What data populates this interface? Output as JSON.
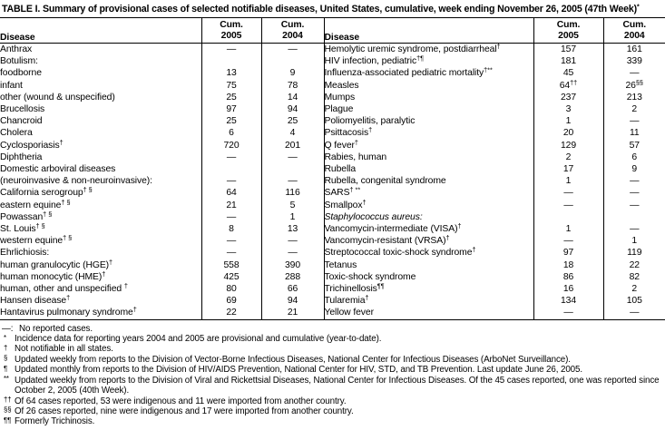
{
  "title": {
    "text": "TABLE I. Summary of provisional cases of selected notifiable diseases, United States, cumulative, week ending November 26, 2005 (47th Week)",
    "sup": "*"
  },
  "header": {
    "disease": "Disease",
    "cum2005": [
      "Cum.",
      "2005"
    ],
    "cum2004": [
      "Cum.",
      "2004"
    ]
  },
  "colors": {
    "text": "#000000",
    "border": "#000000",
    "background": "#ffffff"
  },
  "rows": {
    "left": [
      {
        "label": "Anthrax",
        "v05": "—",
        "v04": "—"
      },
      {
        "label": "Botulism:",
        "v05": "",
        "v04": ""
      },
      {
        "label": "foodborne",
        "indent": 2,
        "v05": "13",
        "v04": "9"
      },
      {
        "label": "infant",
        "indent": 2,
        "v05": "75",
        "v04": "78"
      },
      {
        "label": "other (wound & unspecified)",
        "indent": 2,
        "v05": "25",
        "v04": "14"
      },
      {
        "label": "Brucellosis",
        "v05": "97",
        "v04": "94"
      },
      {
        "label": "Chancroid",
        "v05": "25",
        "v04": "25"
      },
      {
        "label": "Cholera",
        "v05": "6",
        "v04": "4"
      },
      {
        "label": "Cyclosporiasis",
        "sup": "†",
        "v05": "720",
        "v04": "201"
      },
      {
        "label": "Diphtheria",
        "v05": "—",
        "v04": "—"
      },
      {
        "label": "Domestic arboviral diseases",
        "v05": "",
        "v04": ""
      },
      {
        "label": "(neuroinvasive & non-neuroinvasive):",
        "indent": 1,
        "v05": "—",
        "v04": "—"
      },
      {
        "label": "California serogroup",
        "sup": "† §",
        "indent": 2,
        "v05": "64",
        "v04": "116"
      },
      {
        "label": "eastern equine",
        "sup": "† §",
        "indent": 2,
        "v05": "21",
        "v04": "5"
      },
      {
        "label": "Powassan",
        "sup": "† §",
        "indent": 2,
        "v05": "—",
        "v04": "1"
      },
      {
        "label": "St. Louis",
        "sup": "† §",
        "indent": 2,
        "v05": "8",
        "v04": "13"
      },
      {
        "label": "western equine",
        "sup": "† §",
        "indent": 2,
        "v05": "—",
        "v04": "—"
      },
      {
        "label": "Ehrlichiosis:",
        "v05": "—",
        "v04": "—"
      },
      {
        "label": "human granulocytic (HGE)",
        "sup": "†",
        "indent": 2,
        "v05": "558",
        "v04": "390"
      },
      {
        "label": "human monocytic (HME)",
        "sup": "†",
        "indent": 2,
        "v05": "425",
        "v04": "288"
      },
      {
        "label": "human, other and unspecified ",
        "sup": "†",
        "indent": 2,
        "v05": "80",
        "v04": "66"
      },
      {
        "label": "Hansen disease",
        "sup": "†",
        "v05": "69",
        "v04": "94"
      },
      {
        "label": "Hantavirus pulmonary syndrome",
        "sup": "†",
        "v05": "22",
        "v04": "21"
      }
    ],
    "right": [
      {
        "label": "Hemolytic uremic syndrome, postdiarrheal",
        "sup": "†",
        "v05": "157",
        "v04": "161"
      },
      {
        "label": "HIV infection, pediatric",
        "sup": "†¶",
        "v05": "181",
        "v04": "339"
      },
      {
        "label": "Influenza-associated pediatric mortality",
        "sup": "†**",
        "v05": "45",
        "v04": "—"
      },
      {
        "label": "Measles",
        "v05": "64",
        "v05sup": "††",
        "v04": "26",
        "v04sup": "§§"
      },
      {
        "label": "Mumps",
        "v05": "237",
        "v04": "213"
      },
      {
        "label": "Plague",
        "v05": "3",
        "v04": "2"
      },
      {
        "label": "Poliomyelitis, paralytic",
        "v05": "1",
        "v04": "—"
      },
      {
        "label": "Psittacosis",
        "sup": "†",
        "v05": "20",
        "v04": "11"
      },
      {
        "label": "Q fever",
        "sup": "†",
        "v05": "129",
        "v04": "57"
      },
      {
        "label": "Rabies, human",
        "v05": "2",
        "v04": "6"
      },
      {
        "label": "Rubella",
        "v05": "17",
        "v04": "9"
      },
      {
        "label": "Rubella, congenital syndrome",
        "v05": "1",
        "v04": "—"
      },
      {
        "label": "SARS",
        "sup": "† **",
        "v05": "—",
        "v04": "—"
      },
      {
        "label": "Smallpox",
        "sup": "†",
        "v05": "—",
        "v04": "—"
      },
      {
        "label": "Staphylococcus aureus:",
        "italic": true,
        "v05": "",
        "v04": ""
      },
      {
        "label": "Vancomycin-intermediate (VISA)",
        "sup": "†",
        "indent": 2,
        "v05": "1",
        "v04": "—"
      },
      {
        "label": "Vancomycin-resistant (VRSA)",
        "sup": "†",
        "indent": 2,
        "v05": "—",
        "v04": "1"
      },
      {
        "label": "Streptococcal toxic-shock syndrome",
        "sup": "†",
        "v05": "97",
        "v04": "119"
      },
      {
        "label": "Tetanus",
        "v05": "18",
        "v04": "22"
      },
      {
        "label": "Toxic-shock syndrome",
        "v05": "86",
        "v04": "82"
      },
      {
        "label": "Trichinellosis",
        "sup": "¶¶",
        "v05": "16",
        "v04": "2"
      },
      {
        "label": "Tularemia",
        "sup": "†",
        "v05": "134",
        "v04": "105"
      },
      {
        "label": "Yellow fever",
        "v05": "—",
        "v04": "—"
      }
    ]
  },
  "footnotes": [
    {
      "marker": "—:",
      "text": "No reported cases.",
      "raised": false
    },
    {
      "marker": "*",
      "text": "Incidence data for reporting years 2004 and 2005 are provisional and cumulative (year-to-date).",
      "raised": true
    },
    {
      "marker": "†",
      "text": "Not notifiable in all states.",
      "raised": true
    },
    {
      "marker": "§",
      "text": "Updated weekly from reports to the Division of Vector-Borne Infectious Diseases, National Center for Infectious Diseases (ArboNet Surveillance).",
      "raised": true
    },
    {
      "marker": "¶",
      "text": "Updated monthly from reports to the Division of HIV/AIDS Prevention, National Center for HIV, STD, and TB Prevention. Last update June 26, 2005.",
      "raised": true
    },
    {
      "marker": "**",
      "text": "Updated weekly from reports to the Division of Viral and Rickettsial Diseases, National Center for Infectious Diseases. Of the 45 cases reported, one was reported since October 2, 2005 (40th Week).",
      "raised": true
    },
    {
      "marker": "††",
      "text": "Of 64 cases reported, 53 were indigenous and 11 were imported from another country.",
      "raised": true
    },
    {
      "marker": "§§",
      "text": "Of 26 cases reported, nine were indigenous and 17 were imported from another country.",
      "raised": true
    },
    {
      "marker": "¶¶",
      "text": "Formerly Trichinosis.",
      "raised": true
    }
  ]
}
